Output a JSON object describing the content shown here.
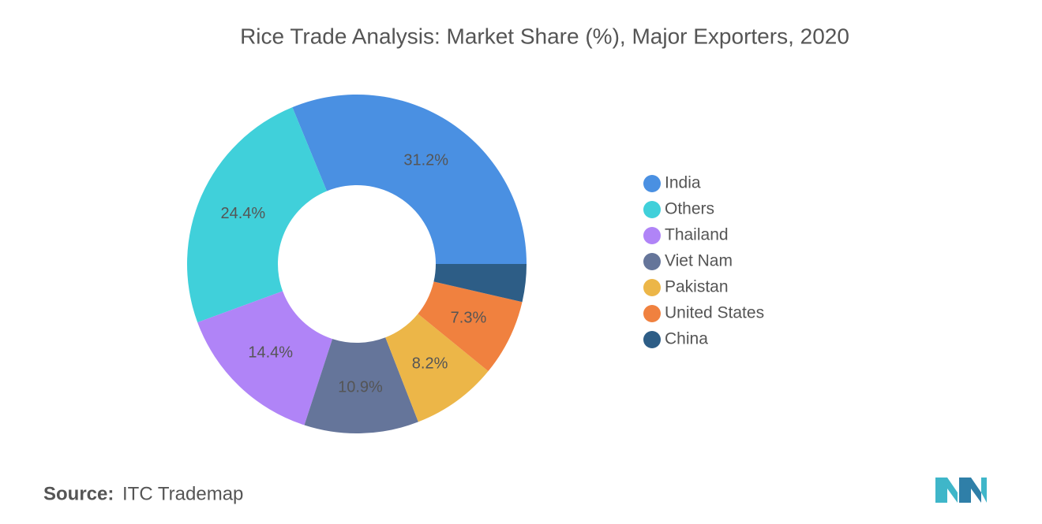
{
  "chart_data": {
    "type": "donut",
    "title": "Rice Trade Analysis: Market Share (%), Major Exporters, 2020",
    "categories": [
      "India",
      "Others",
      "Thailand",
      "Viet Nam",
      "Pakistan",
      "United States",
      "China"
    ],
    "values": [
      31.2,
      24.4,
      14.4,
      10.9,
      8.2,
      7.3,
      3.6
    ],
    "value_labels": [
      "31.2%",
      "24.4%",
      "14.4%",
      "10.9%",
      "8.2%",
      "7.3%",
      null
    ],
    "colors": [
      "#4a90e2",
      "#40d0da",
      "#b084f7",
      "#65759a",
      "#ecb648",
      "#f0813f",
      "#2d5d86"
    ],
    "legend": "right"
  },
  "source": {
    "label": "Source:",
    "text": "ITC Trademap"
  }
}
